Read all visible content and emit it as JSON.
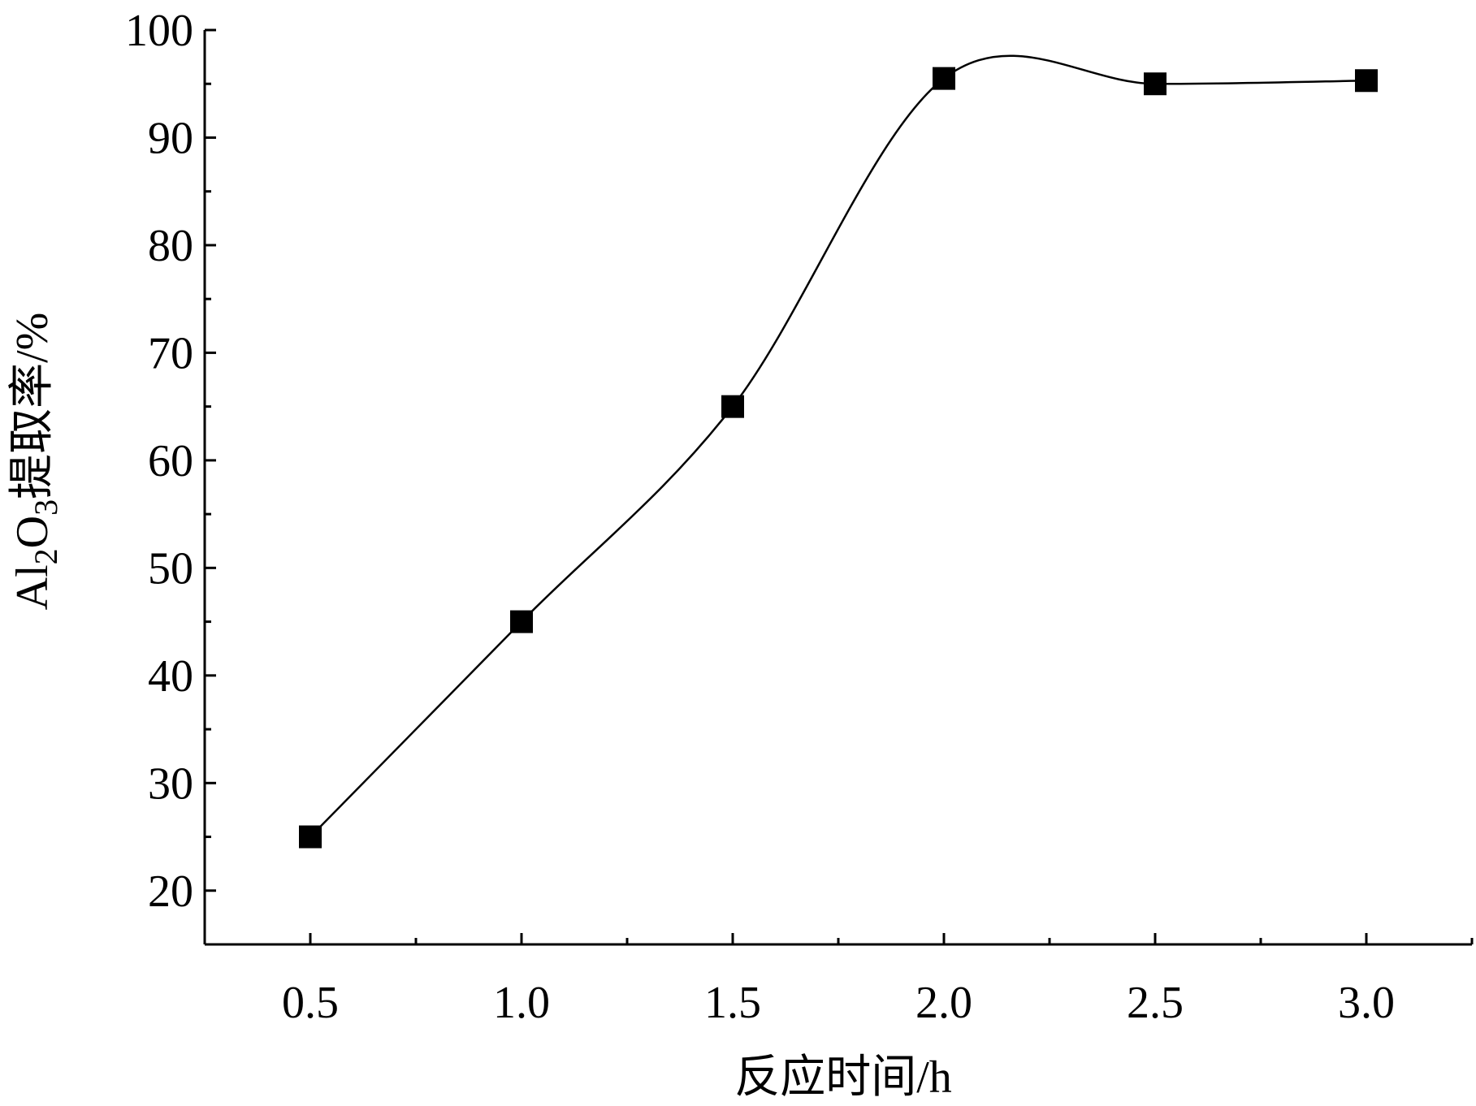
{
  "chart_data": {
    "type": "line",
    "x": [
      0.5,
      1.0,
      1.5,
      2.0,
      2.5,
      3.0
    ],
    "series": [
      {
        "values": [
          25,
          45,
          65,
          95.5,
          95,
          95.3
        ],
        "marker": "square",
        "smoothed": true,
        "color": "#000000"
      }
    ],
    "xlabel": "反应时间/h",
    "ylabel": {
      "prefix": "Al",
      "sub1": "2",
      "mid": "O",
      "sub2": "3",
      "suffix": "提取率/%"
    },
    "xlim": [
      0.25,
      3.25
    ],
    "ylim": [
      15,
      100
    ],
    "xticks": [
      "0.5",
      "1.0",
      "1.5",
      "2.0",
      "2.5",
      "3.0"
    ],
    "yticks": [
      "20",
      "30",
      "40",
      "50",
      "60",
      "70",
      "80",
      "90",
      "100"
    ],
    "grid": false,
    "legend": false
  }
}
